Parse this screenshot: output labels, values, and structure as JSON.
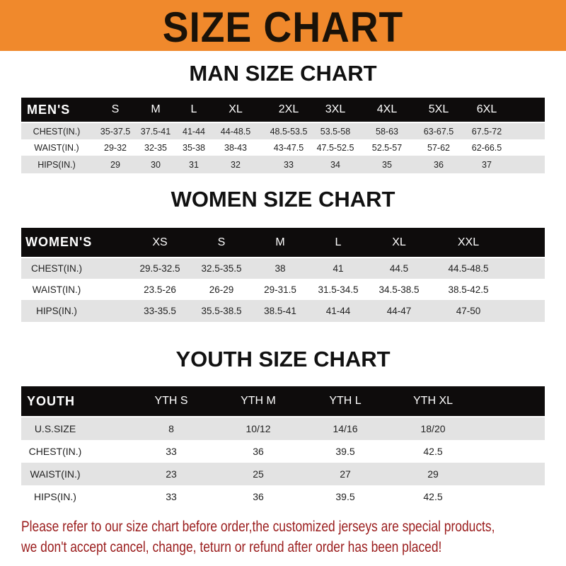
{
  "banner": {
    "title": "SIZE CHART",
    "color": "#f0892c"
  },
  "men": {
    "title": "MAN SIZE CHART",
    "headers": [
      "MEN'S",
      "S",
      "M",
      "L",
      "XL",
      "2XL",
      "3XL",
      "4XL",
      "5XL",
      "6XL"
    ],
    "rows": [
      [
        "CHEST(IN.)",
        "35-37.5",
        "37.5-41",
        "41-44",
        "44-48.5",
        "48.5-53.5",
        "53.5-58",
        "58-63",
        "63-67.5",
        "67.5-72"
      ],
      [
        "WAIST(IN.)",
        "29-32",
        "32-35",
        "35-38",
        "38-43",
        "43-47.5",
        "47.5-52.5",
        "52.5-57",
        "57-62",
        "62-66.5"
      ],
      [
        "HIPS(IN.)",
        "29",
        "30",
        "31",
        "32",
        "33",
        "34",
        "35",
        "36",
        "37"
      ]
    ]
  },
  "women": {
    "title": "WOMEN SIZE CHART",
    "headers": [
      "WOMEN'S",
      "XS",
      "S",
      "M",
      "L",
      "XL",
      "XXL"
    ],
    "rows": [
      [
        "CHEST(IN.)",
        "29.5-32.5",
        "32.5-35.5",
        "38",
        "41",
        "44.5",
        "44.5-48.5"
      ],
      [
        "WAIST(IN.)",
        "23.5-26",
        "26-29",
        "29-31.5",
        "31.5-34.5",
        "34.5-38.5",
        "38.5-42.5"
      ],
      [
        "HIPS(IN.)",
        "33-35.5",
        "35.5-38.5",
        "38.5-41",
        "41-44",
        "44-47",
        "47-50"
      ]
    ]
  },
  "youth": {
    "title": "YOUTH SIZE CHART",
    "headers": [
      "YOUTH",
      "YTH S",
      "YTH M",
      "YTH L",
      "YTH XL"
    ],
    "rows": [
      [
        "U.S.SIZE",
        "8",
        "10/12",
        "14/16",
        "18/20"
      ],
      [
        "CHEST(IN.)",
        "33",
        "36",
        "39.5",
        "42.5"
      ],
      [
        "WAIST(IN.)",
        "23",
        "25",
        "27",
        "29"
      ],
      [
        "HIPS(IN.)",
        "33",
        "36",
        "39.5",
        "42.5"
      ]
    ]
  },
  "notice": {
    "line1": "Please refer to our size chart before order,the customized jerseys are special products,",
    "line2": "we don't accept cancel, change, teturn or refund after order has been placed!",
    "color": "#9a1c1c"
  }
}
